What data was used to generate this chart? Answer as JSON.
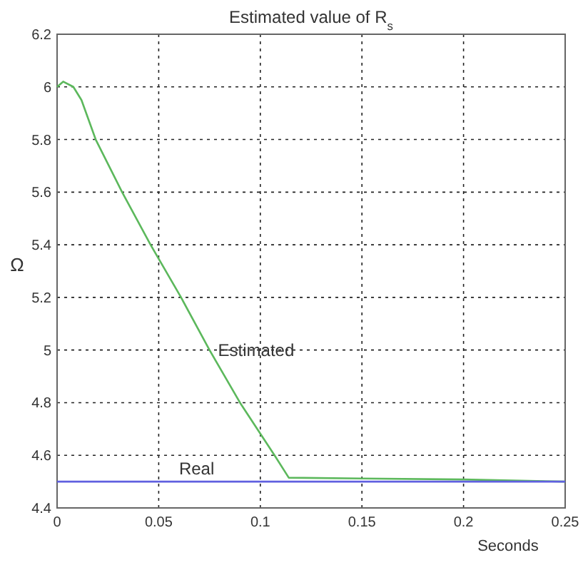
{
  "chart_data": {
    "type": "line",
    "title": "Estimated value of R$_{s}$",
    "xlabel": "Seconds",
    "ylabel": "Ω",
    "xlim": [
      0,
      0.25
    ],
    "ylim": [
      4.4,
      6.2
    ],
    "xticks": [
      0,
      0.05,
      0.1,
      0.15,
      0.2,
      0.25
    ],
    "yticks": [
      4.4,
      4.6,
      4.8,
      5,
      5.2,
      5.4,
      5.6,
      5.8,
      6,
      6.2
    ],
    "grid": true,
    "series": [
      {
        "name": "Estimated",
        "color": "#5cb85c",
        "x": [
          0,
          0.003,
          0.008,
          0.012,
          0.019,
          0.032,
          0.046,
          0.061,
          0.075,
          0.09,
          0.107,
          0.114,
          0.15,
          0.2,
          0.25
        ],
        "values": [
          6,
          6.02,
          6,
          5.95,
          5.8,
          5.6,
          5.4,
          5.2,
          5,
          4.8,
          4.6,
          4.515,
          4.512,
          4.508,
          4.5
        ]
      },
      {
        "name": "Real",
        "color": "#6060e0",
        "x": [
          0,
          0.25
        ],
        "values": [
          4.5,
          4.5
        ]
      }
    ]
  }
}
